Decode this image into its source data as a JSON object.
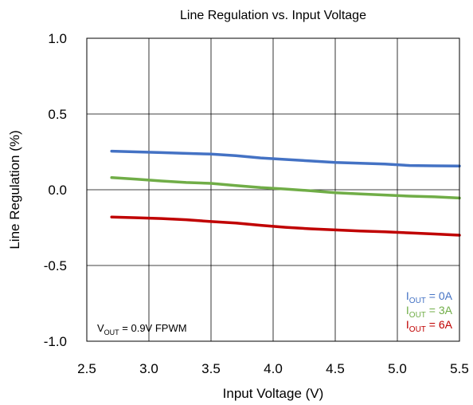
{
  "chart_data": {
    "type": "line",
    "title": "Line Regulation vs. Input Voltage",
    "xlabel": "Input Voltage (V)",
    "ylabel": "Line Regulation (%)",
    "xlim": [
      2.5,
      5.5
    ],
    "ylim": [
      -1.0,
      1.0
    ],
    "x_ticks": [
      "2.5",
      "3.0",
      "3.5",
      "4.0",
      "4.5",
      "5.0",
      "5.5"
    ],
    "y_ticks": [
      "1.0",
      "0.5",
      "0.0",
      "-0.5",
      "-1.0"
    ],
    "grid": true,
    "legend_position": "bottom-right",
    "annotation": {
      "prefix": "V",
      "subscript": "OUT",
      "suffix": " = 0.9V FPWM"
    },
    "x": [
      2.7,
      2.9,
      3.1,
      3.3,
      3.5,
      3.7,
      3.9,
      4.1,
      4.3,
      4.5,
      4.7,
      4.9,
      5.1,
      5.3,
      5.5
    ],
    "series": [
      {
        "legend_prefix": "I",
        "legend_subscript": "OUT",
        "legend_suffix": " = 0A",
        "color": "#4472c4",
        "values": [
          0.255,
          0.25,
          0.245,
          0.24,
          0.235,
          0.225,
          0.21,
          0.2,
          0.19,
          0.18,
          0.175,
          0.17,
          0.16,
          0.158,
          0.157
        ]
      },
      {
        "legend_prefix": "I",
        "legend_subscript": "OUT",
        "legend_suffix": " = 3A",
        "color": "#70ad47",
        "values": [
          0.08,
          0.07,
          0.058,
          0.048,
          0.042,
          0.028,
          0.014,
          0.005,
          -0.007,
          -0.02,
          -0.028,
          -0.035,
          -0.042,
          -0.047,
          -0.055
        ]
      },
      {
        "legend_prefix": "I",
        "legend_subscript": "OUT",
        "legend_suffix": " = 6A",
        "color": "#c00000",
        "values": [
          -0.18,
          -0.185,
          -0.19,
          -0.198,
          -0.21,
          -0.22,
          -0.235,
          -0.248,
          -0.258,
          -0.265,
          -0.272,
          -0.278,
          -0.285,
          -0.292,
          -0.3
        ]
      }
    ]
  }
}
